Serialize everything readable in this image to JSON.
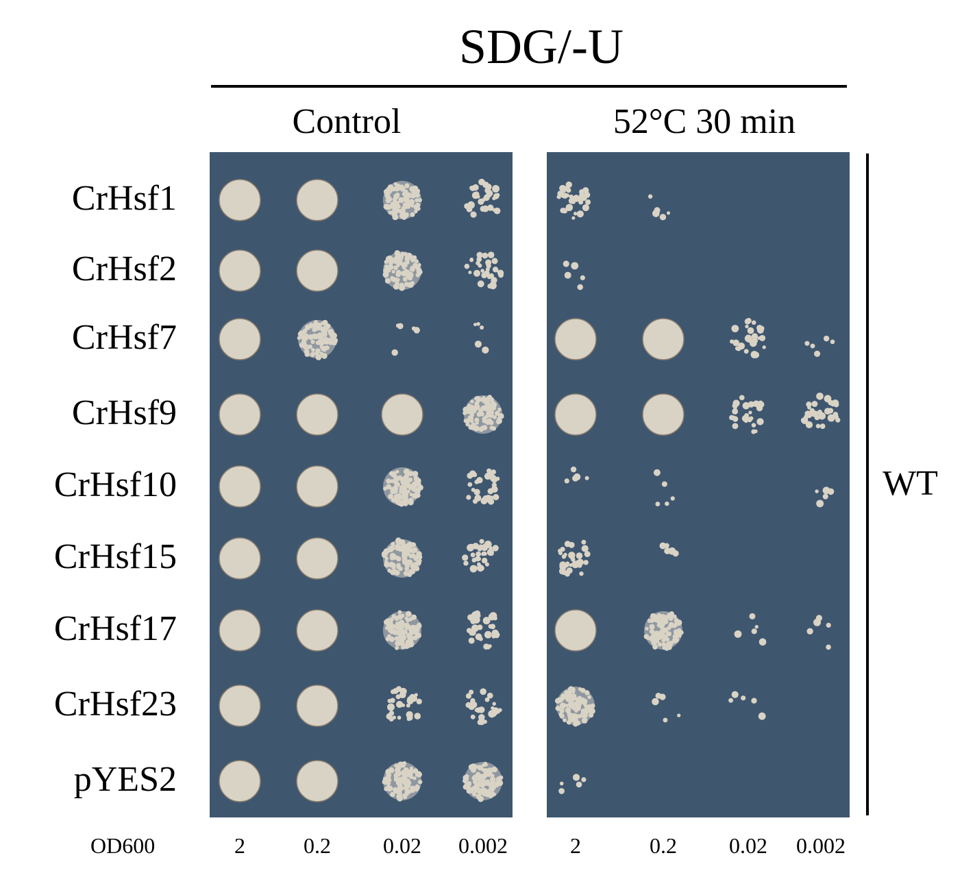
{
  "title": "SDG/-U",
  "conditions": [
    "Control",
    "52°C 30 min"
  ],
  "strains": [
    "CrHsf1",
    "CrHsf2",
    "CrHsf7",
    "CrHsf9",
    "CrHsf10",
    "CrHsf15",
    "CrHsf17",
    "CrHsf23",
    "pYES2"
  ],
  "background_label": "WT",
  "od_label": "OD600",
  "dilutions": [
    "2",
    "0.2",
    "0.02",
    "0.002"
  ],
  "colors": {
    "plate": "#3f566f",
    "colony": "#d9d3c5"
  },
  "growth_levels_scale": "0=none, 1=few colonies, 2=sparse colonies, 3=dense colonies, 4=confluent",
  "growth": {
    "Control": [
      [
        4,
        4,
        3,
        2
      ],
      [
        4,
        4,
        3,
        2
      ],
      [
        4,
        3,
        1,
        1
      ],
      [
        4,
        4,
        4,
        3
      ],
      [
        4,
        4,
        3,
        2
      ],
      [
        4,
        4,
        3,
        2
      ],
      [
        4,
        4,
        3,
        2
      ],
      [
        4,
        4,
        2,
        2
      ],
      [
        4,
        4,
        3,
        3
      ]
    ],
    "52°C 30 min": [
      [
        2,
        1,
        0,
        0
      ],
      [
        1,
        0,
        0,
        0
      ],
      [
        4,
        4,
        2,
        1
      ],
      [
        4,
        4,
        2,
        2
      ],
      [
        1,
        1,
        0,
        1
      ],
      [
        2,
        1,
        0,
        0
      ],
      [
        4,
        3,
        1,
        1
      ],
      [
        3,
        1,
        1,
        0
      ],
      [
        1,
        0,
        0,
        0
      ]
    ]
  }
}
